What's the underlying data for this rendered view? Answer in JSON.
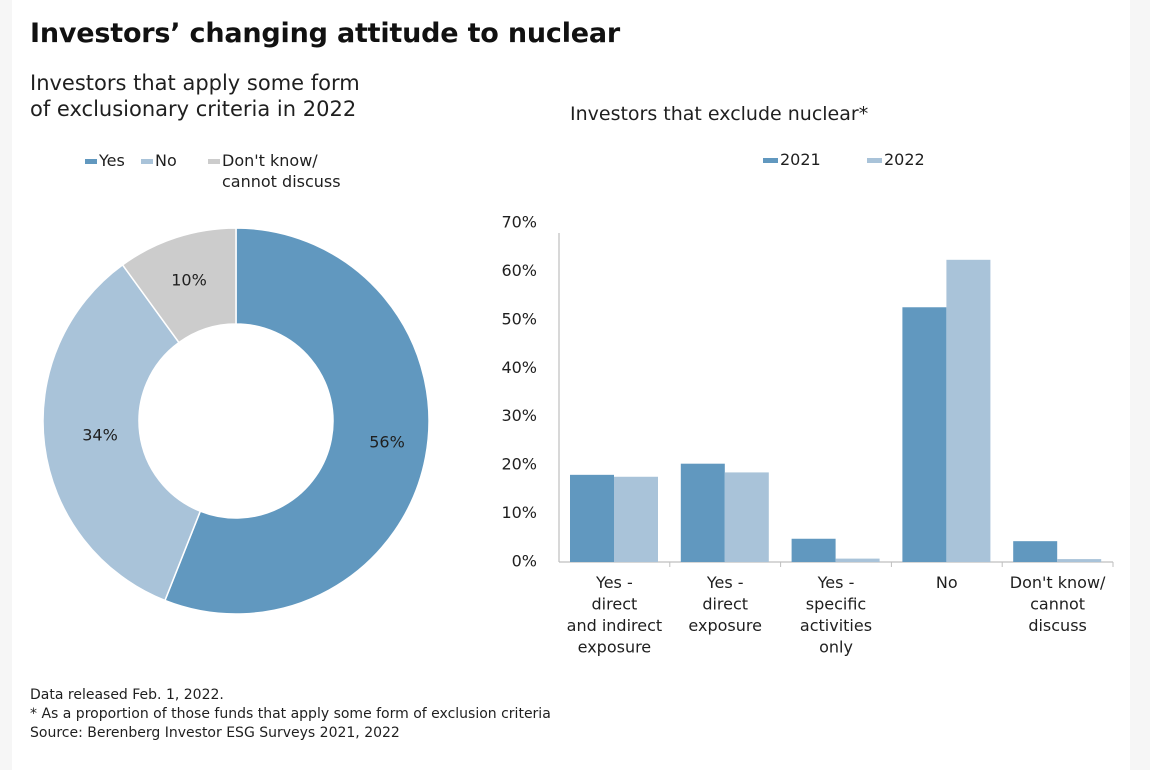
{
  "title": "Investors’ changing attitude to nuclear",
  "colors": {
    "yes_2021": "#6198bf",
    "no_2022": "#a9c3d9",
    "dont_know": "#cccccc",
    "axis": "#bfbfbf",
    "text": "#1f1f1f"
  },
  "chart_data": [
    {
      "type": "pie",
      "variant": "donut",
      "title": "Investors that apply some form of exclusionary criteria in 2022",
      "title_lines": [
        "Investors that apply some form",
        "of exclusionary criteria in 2022"
      ],
      "legend": {
        "placement": "top",
        "entries": [
          {
            "label": "Yes",
            "lines": [
              "Yes"
            ],
            "color": "#6198bf"
          },
          {
            "label": "No",
            "lines": [
              "No"
            ],
            "color": "#a9c3d9"
          },
          {
            "label": "Don't know/ cannot discuss",
            "lines": [
              "Don't know/",
              "cannot discuss"
            ],
            "color": "#cccccc"
          }
        ]
      },
      "categories": [
        "Yes",
        "No",
        "Don't know/ cannot discuss"
      ],
      "values": [
        56,
        34,
        10
      ],
      "data_labels": [
        "56%",
        "34%",
        "10%"
      ],
      "start": "top",
      "direction": "clockwise"
    },
    {
      "type": "bar",
      "title": "Investors that exclude nuclear*",
      "legend": {
        "placement": "top",
        "entries": [
          {
            "label": "2021",
            "color": "#6198bf"
          },
          {
            "label": "2022",
            "color": "#a9c3d9"
          }
        ]
      },
      "categories": [
        "Yes - direct and indirect exposure",
        "Yes - direct exposure",
        "Yes - specific activities only",
        "No",
        "Don't know/ cannot discuss"
      ],
      "category_lines": [
        [
          "Yes -",
          "direct",
          "and indirect",
          "exposure"
        ],
        [
          "Yes -",
          "direct",
          "exposure"
        ],
        [
          "Yes -",
          "specific",
          "activities",
          "only"
        ],
        [
          "No"
        ],
        [
          "Don't know/",
          "cannot",
          "discuss"
        ]
      ],
      "series": [
        {
          "name": "2021",
          "color": "#6198bf",
          "values": [
            18.0,
            20.3,
            4.8,
            52.6,
            4.3
          ]
        },
        {
          "name": "2022",
          "color": "#a9c3d9",
          "values": [
            17.6,
            18.5,
            0.7,
            62.4,
            0.6
          ]
        }
      ],
      "xlabel": "",
      "ylabel": "",
      "ylim": [
        0,
        70
      ],
      "yticks": [
        0,
        10,
        20,
        30,
        40,
        50,
        60,
        70
      ],
      "ytick_labels": [
        "0%",
        "10%",
        "20%",
        "30%",
        "40%",
        "50%",
        "60%",
        "70%"
      ],
      "grid": false
    }
  ],
  "footer": {
    "lines": [
      "Data released Feb. 1, 2022.",
      "* As a proportion of those funds that apply some form of exclusion criteria",
      "Source: Berenberg Investor ESG Surveys 2021, 2022"
    ]
  }
}
